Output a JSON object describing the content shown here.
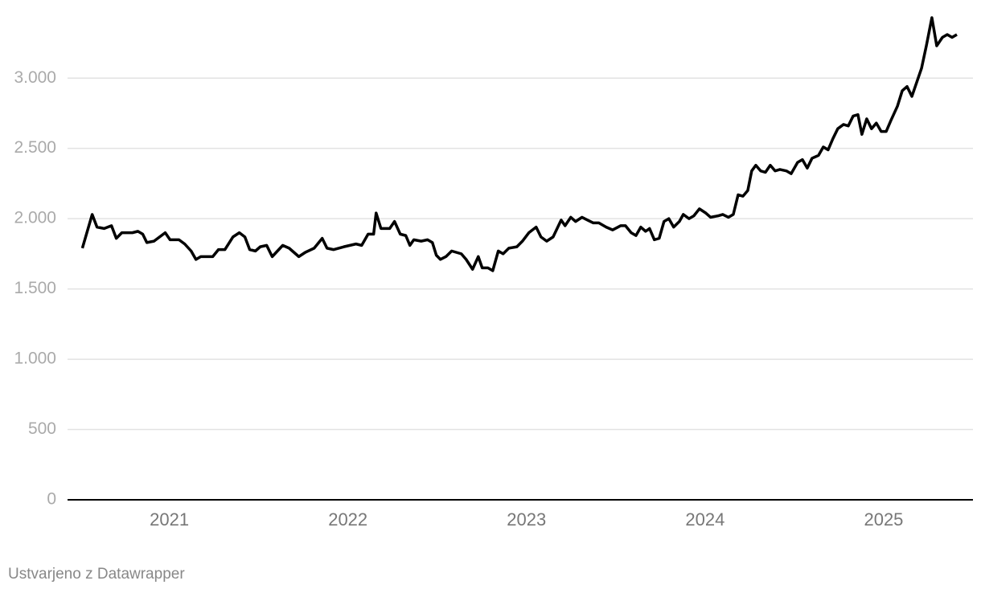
{
  "chart_data": {
    "type": "line",
    "x": [
      2020.513,
      2020.568,
      2020.595,
      2020.635,
      2020.676,
      2020.703,
      2020.734,
      2020.793,
      2020.824,
      2020.851,
      2020.874,
      2020.914,
      2020.977,
      2021.004,
      2021.054,
      2021.086,
      2021.122,
      2021.149,
      2021.176,
      2021.243,
      2021.275,
      2021.311,
      2021.356,
      2021.392,
      2021.423,
      2021.45,
      2021.482,
      2021.509,
      2021.545,
      2021.576,
      2021.635,
      2021.671,
      2021.725,
      2021.761,
      2021.811,
      2021.856,
      2021.883,
      2021.919,
      2021.977,
      2022.045,
      2022.077,
      2022.113,
      2022.144,
      2022.158,
      2022.185,
      2022.234,
      2022.261,
      2022.293,
      2022.324,
      2022.347,
      2022.369,
      2022.41,
      2022.446,
      2022.473,
      2022.495,
      2022.518,
      2022.549,
      2022.581,
      2022.635,
      2022.662,
      2022.698,
      2022.73,
      2022.752,
      2022.784,
      2022.811,
      2022.842,
      2022.869,
      2022.901,
      2022.946,
      2022.977,
      2023.013,
      2023.054,
      2023.081,
      2023.113,
      2023.149,
      2023.194,
      2023.216,
      2023.248,
      2023.275,
      2023.311,
      2023.342,
      2023.374,
      2023.405,
      2023.446,
      2023.482,
      2023.527,
      2023.554,
      2023.586,
      2023.613,
      2023.64,
      2023.667,
      2023.689,
      2023.716,
      2023.743,
      2023.77,
      2023.797,
      2023.824,
      2023.856,
      2023.878,
      2023.91,
      2023.937,
      2023.968,
      2024.004,
      2024.031,
      2024.072,
      2024.099,
      2024.131,
      2024.158,
      2024.185,
      2024.212,
      2024.239,
      2024.261,
      2024.284,
      2024.311,
      2024.338,
      2024.365,
      2024.392,
      2024.419,
      2024.455,
      2024.482,
      2024.518,
      2024.545,
      2024.572,
      2024.599,
      2024.635,
      2024.662,
      2024.689,
      2024.716,
      2024.743,
      2024.775,
      2024.802,
      2024.829,
      2024.856,
      2024.878,
      2024.905,
      2024.932,
      2024.959,
      2024.986,
      2025.014,
      2025.041,
      2025.077,
      2025.104,
      2025.131,
      2025.158,
      2025.185,
      2025.212,
      2025.239,
      2025.27,
      2025.297,
      2025.329,
      2025.356,
      2025.383,
      2025.41
    ],
    "values": [
      1790,
      2030,
      1940,
      1930,
      1950,
      1860,
      1900,
      1900,
      1910,
      1890,
      1830,
      1840,
      1900,
      1850,
      1850,
      1820,
      1770,
      1710,
      1730,
      1730,
      1780,
      1780,
      1870,
      1900,
      1870,
      1780,
      1770,
      1800,
      1810,
      1730,
      1810,
      1790,
      1730,
      1760,
      1790,
      1860,
      1790,
      1780,
      1800,
      1820,
      1810,
      1890,
      1890,
      2040,
      1930,
      1930,
      1980,
      1890,
      1880,
      1810,
      1850,
      1840,
      1850,
      1830,
      1740,
      1710,
      1730,
      1770,
      1750,
      1710,
      1640,
      1730,
      1650,
      1650,
      1630,
      1770,
      1750,
      1790,
      1800,
      1840,
      1900,
      1940,
      1870,
      1840,
      1870,
      1990,
      1950,
      2010,
      1980,
      2010,
      1990,
      1970,
      1970,
      1940,
      1920,
      1950,
      1950,
      1900,
      1880,
      1940,
      1910,
      1930,
      1850,
      1860,
      1980,
      2000,
      1940,
      1980,
      2030,
      2000,
      2020,
      2070,
      2040,
      2010,
      2020,
      2030,
      2010,
      2030,
      2170,
      2160,
      2200,
      2340,
      2380,
      2340,
      2330,
      2380,
      2340,
      2350,
      2340,
      2320,
      2400,
      2420,
      2360,
      2430,
      2450,
      2510,
      2490,
      2570,
      2640,
      2670,
      2660,
      2730,
      2740,
      2600,
      2710,
      2640,
      2680,
      2620,
      2620,
      2700,
      2800,
      2910,
      2940,
      2870,
      2970,
      3070,
      3230,
      3430,
      3230,
      3290,
      3310,
      3290,
      3310
    ],
    "color": "#000000",
    "xlim": [
      2020.43,
      2025.5
    ],
    "xticks": [
      2021,
      2022,
      2023,
      2024,
      2025
    ],
    "ylim": [
      0,
      3550
    ],
    "yticks": [
      0,
      500,
      {
        "value": 1000,
        "label": "1.000"
      },
      {
        "value": 1500,
        "label": "1.500"
      },
      {
        "value": 2000,
        "label": "2.000"
      },
      {
        "value": 2500,
        "label": "2.500"
      },
      {
        "value": 3000,
        "label": "3.000"
      }
    ],
    "grid": true,
    "footer": "Ustvarjeno z Datawrapper"
  }
}
